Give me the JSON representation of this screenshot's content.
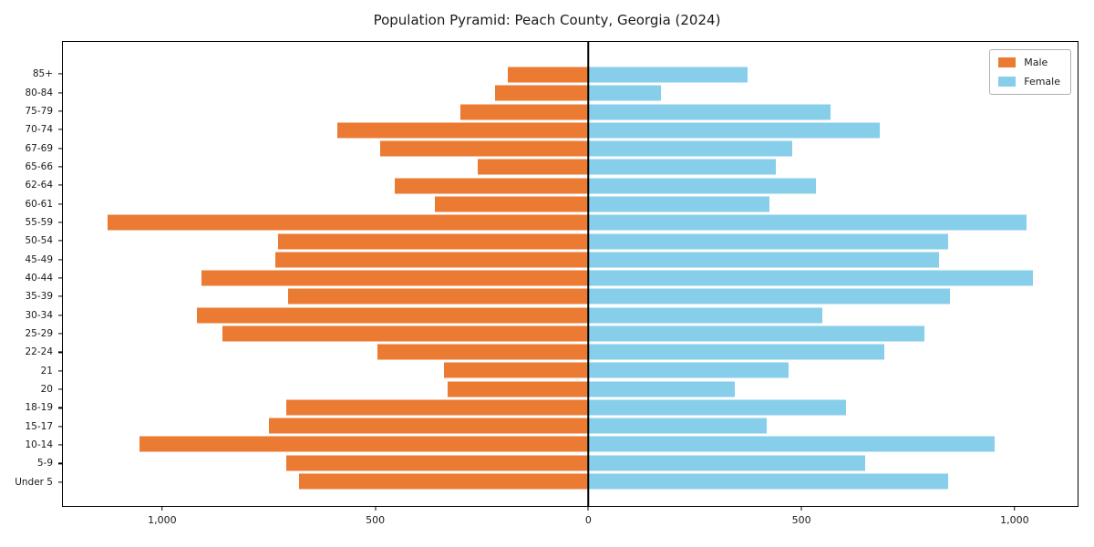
{
  "title": "Population Pyramid: Peach County, Georgia (2024)",
  "chart_data": {
    "type": "bar",
    "subtype": "population-pyramid",
    "title": "Population Pyramid: Peach County, Georgia (2024)",
    "grid": false,
    "legend_position": "upper right",
    "xlim": [
      -1235,
      1150
    ],
    "categories_top_to_bottom": [
      "85+",
      "80-84",
      "75-79",
      "70-74",
      "67-69",
      "65-66",
      "62-64",
      "60-61",
      "55-59",
      "50-54",
      "45-49",
      "40-44",
      "35-39",
      "30-34",
      "25-29",
      "22-24",
      "21",
      "20",
      "18-19",
      "15-17",
      "10-14",
      "5-9",
      "Under 5"
    ],
    "series": [
      {
        "name": "Male",
        "side": "left",
        "color": "#EB7A33",
        "values": [
          190,
          220,
          300,
          590,
          490,
          260,
          455,
          360,
          1130,
          730,
          735,
          910,
          705,
          920,
          860,
          495,
          340,
          330,
          710,
          750,
          1055,
          710,
          680
        ]
      },
      {
        "name": "Female",
        "side": "right",
        "color": "#87CEEB",
        "values": [
          375,
          170,
          570,
          685,
          480,
          440,
          535,
          425,
          1030,
          845,
          825,
          1045,
          850,
          550,
          790,
          695,
          470,
          345,
          605,
          420,
          955,
          650,
          845
        ]
      }
    ],
    "x_ticks": [
      {
        "value": -1000,
        "label": "1,000"
      },
      {
        "value": -500,
        "label": "500"
      },
      {
        "value": 0,
        "label": "0"
      },
      {
        "value": 500,
        "label": "500"
      },
      {
        "value": 1000,
        "label": "1,000"
      }
    ]
  }
}
